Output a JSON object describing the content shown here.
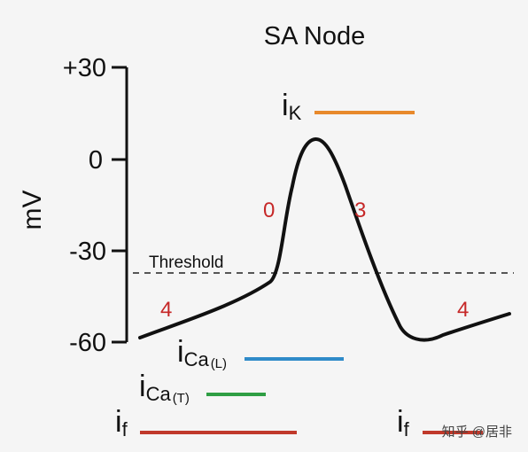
{
  "title": "SA Node",
  "y_axis": {
    "label": "mV",
    "ticks": [
      {
        "label": "+30",
        "value": 30
      },
      {
        "label": "0",
        "value": 0
      },
      {
        "label": "-30",
        "value": -30
      },
      {
        "label": "-60",
        "value": -60
      }
    ]
  },
  "threshold": {
    "label": "Threshold",
    "value_mv": -38
  },
  "phases": {
    "phase_4_left": "4",
    "phase_0": "0",
    "phase_3": "3",
    "phase_4_right": "4"
  },
  "currents": {
    "ik": {
      "main": "i",
      "sub": "K",
      "color": "#e8892b"
    },
    "ical": {
      "main": "i",
      "sub": "Ca",
      "paren": "(L)",
      "color": "#2f8bc9"
    },
    "icat": {
      "main": "i",
      "sub": "Ca",
      "paren": "(T)",
      "color": "#2f9e44"
    },
    "if_left": {
      "main": "i",
      "sub": "f",
      "color": "#c0392b"
    },
    "if_right": {
      "main": "i",
      "sub": "f",
      "color": "#c0392b"
    }
  },
  "watermark": "知乎 @居非",
  "colors": {
    "trace": "#111111",
    "phase_label": "#c62828"
  }
}
